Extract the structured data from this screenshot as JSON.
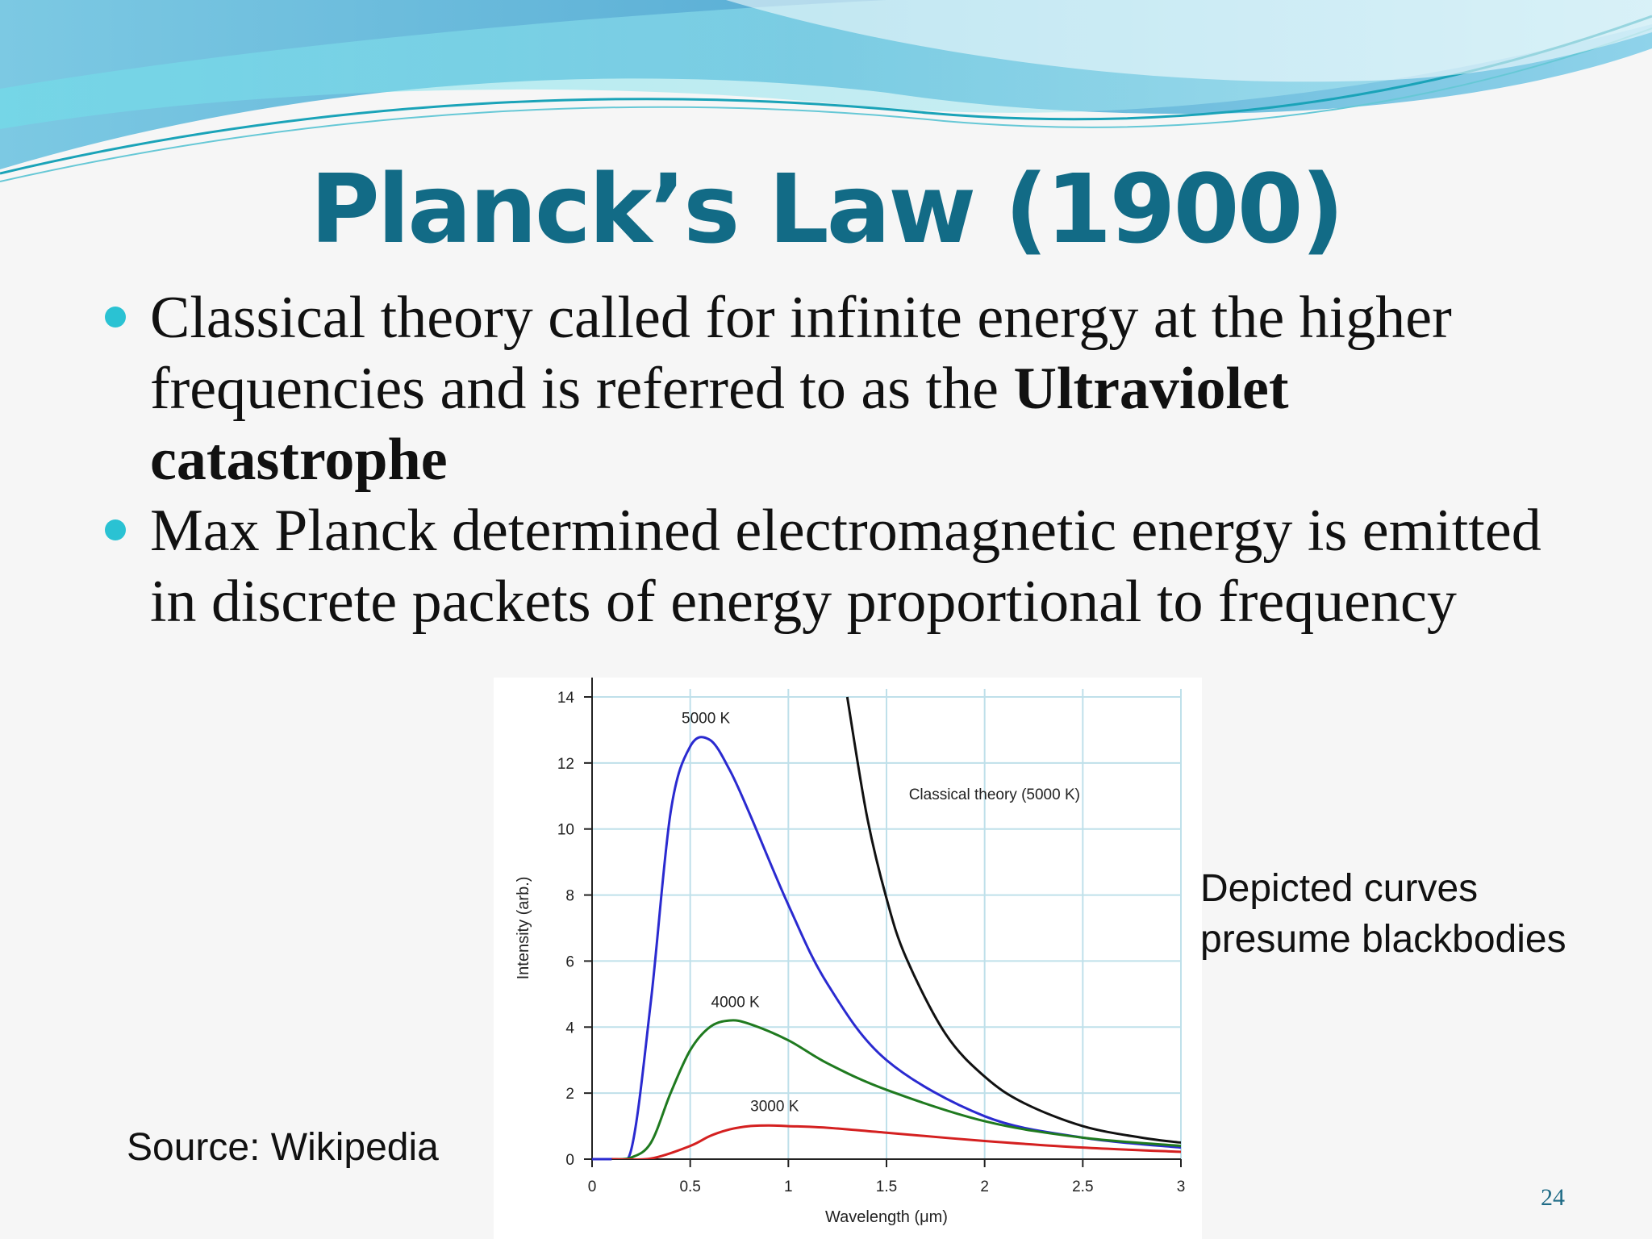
{
  "slide": {
    "title": "Planck’s Law (1900)",
    "bullets": [
      {
        "text": "Classical theory called for infinite energy at the higher frequencies and is referred to as the ",
        "bold": "Ultraviolet catastrophe"
      },
      {
        "text": "Max Planck determined electromagnetic energy is emitted in discrete packets of energy proportional to frequency",
        "bold": ""
      }
    ],
    "side_note": "Depicted curves presume blackbodies",
    "source": "Source: Wikipedia",
    "page_number": "24",
    "colors": {
      "title": "#126b86",
      "bullet": "#2ac2d3",
      "wave_dark": "#6fb8dc",
      "wave_light": "#8fdde8"
    }
  },
  "chart_data": {
    "type": "line",
    "xlabel": "Wavelength (μm)",
    "ylabel": "Intensity (arb.)",
    "xlim": [
      0,
      3
    ],
    "ylim": [
      0,
      14
    ],
    "x_ticks": [
      "0",
      "0.5",
      "1",
      "1.5",
      "2",
      "2.5",
      "3"
    ],
    "y_ticks": [
      "0",
      "2",
      "4",
      "6",
      "8",
      "10",
      "12",
      "14"
    ],
    "grid": true,
    "series": [
      {
        "name": "5000 K",
        "color": "#2a2ad0",
        "x": [
          0.1,
          0.2,
          0.3,
          0.4,
          0.5,
          0.6,
          0.7,
          0.8,
          1.0,
          1.2,
          1.5,
          2.0,
          2.5,
          3.0
        ],
        "y": [
          0,
          0.3,
          4.8,
          10.5,
          12.5,
          12.7,
          11.8,
          10.5,
          7.7,
          5.3,
          3.0,
          1.3,
          0.65,
          0.35
        ]
      },
      {
        "name": "4000 K",
        "color": "#1f7a1f",
        "x": [
          0.1,
          0.2,
          0.3,
          0.4,
          0.5,
          0.6,
          0.7,
          0.8,
          1.0,
          1.2,
          1.5,
          2.0,
          2.5,
          3.0
        ],
        "y": [
          0,
          0.05,
          0.5,
          2.0,
          3.3,
          4.0,
          4.2,
          4.1,
          3.6,
          2.9,
          2.1,
          1.15,
          0.65,
          0.4
        ]
      },
      {
        "name": "3000 K",
        "color": "#d42020",
        "x": [
          0.1,
          0.3,
          0.5,
          0.6,
          0.7,
          0.8,
          0.9,
          1.0,
          1.2,
          1.5,
          2.0,
          2.5,
          3.0
        ],
        "y": [
          0,
          0.02,
          0.4,
          0.7,
          0.9,
          1.0,
          1.02,
          1.0,
          0.95,
          0.8,
          0.55,
          0.35,
          0.22
        ]
      },
      {
        "name": "Classical theory (5000 K)",
        "color": "#111111",
        "x": [
          1.3,
          1.4,
          1.5,
          1.6,
          1.8,
          2.0,
          2.2,
          2.5,
          2.8,
          3.0
        ],
        "y": [
          14.0,
          10.4,
          7.9,
          6.1,
          3.8,
          2.5,
          1.7,
          1.0,
          0.65,
          0.5
        ]
      }
    ],
    "labels": [
      {
        "text": "5000 K",
        "x": 0.58,
        "y": 13.2
      },
      {
        "text": "Classical theory (5000 K)",
        "x": 2.05,
        "y": 10.9
      },
      {
        "text": "4000 K",
        "x": 0.73,
        "y": 4.6
      },
      {
        "text": "3000 K",
        "x": 0.93,
        "y": 1.45
      }
    ]
  }
}
